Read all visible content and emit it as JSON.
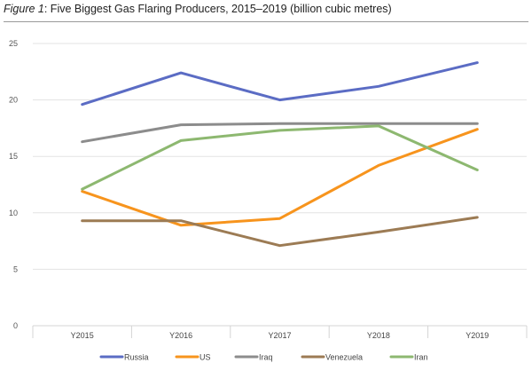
{
  "figure": {
    "label": "Figure 1",
    "caption": ": Five Biggest Gas Flaring Producers, 2015–2019 (billion cubic metres)"
  },
  "chart_data": {
    "type": "line",
    "title": "Figure 1: Five Biggest Gas Flaring Producers, 2015–2019 (billion cubic metres)",
    "xlabel": "",
    "ylabel": "",
    "categories": [
      "Y2015",
      "Y2016",
      "Y2017",
      "Y2018",
      "Y2019"
    ],
    "ylim": [
      0,
      25
    ],
    "yticks": [
      "0",
      "5",
      "10",
      "15",
      "20",
      "25"
    ],
    "grid": true,
    "legend_position": "bottom",
    "series": [
      {
        "name": "Russia",
        "color": "#5B6CC4",
        "values": [
          19.6,
          22.4,
          20.0,
          21.2,
          23.3
        ]
      },
      {
        "name": "US",
        "color": "#F7941D",
        "values": [
          11.9,
          8.9,
          9.5,
          14.2,
          17.4
        ]
      },
      {
        "name": "Iraq",
        "color": "#8C8C8C",
        "values": [
          16.3,
          17.8,
          17.9,
          17.9,
          17.9
        ]
      },
      {
        "name": "Venezuela",
        "color": "#9C7B54",
        "values": [
          9.3,
          9.3,
          7.1,
          8.3,
          9.6
        ]
      },
      {
        "name": "Iran",
        "color": "#8DB870",
        "values": [
          12.1,
          16.4,
          17.3,
          17.7,
          13.8
        ]
      }
    ]
  }
}
